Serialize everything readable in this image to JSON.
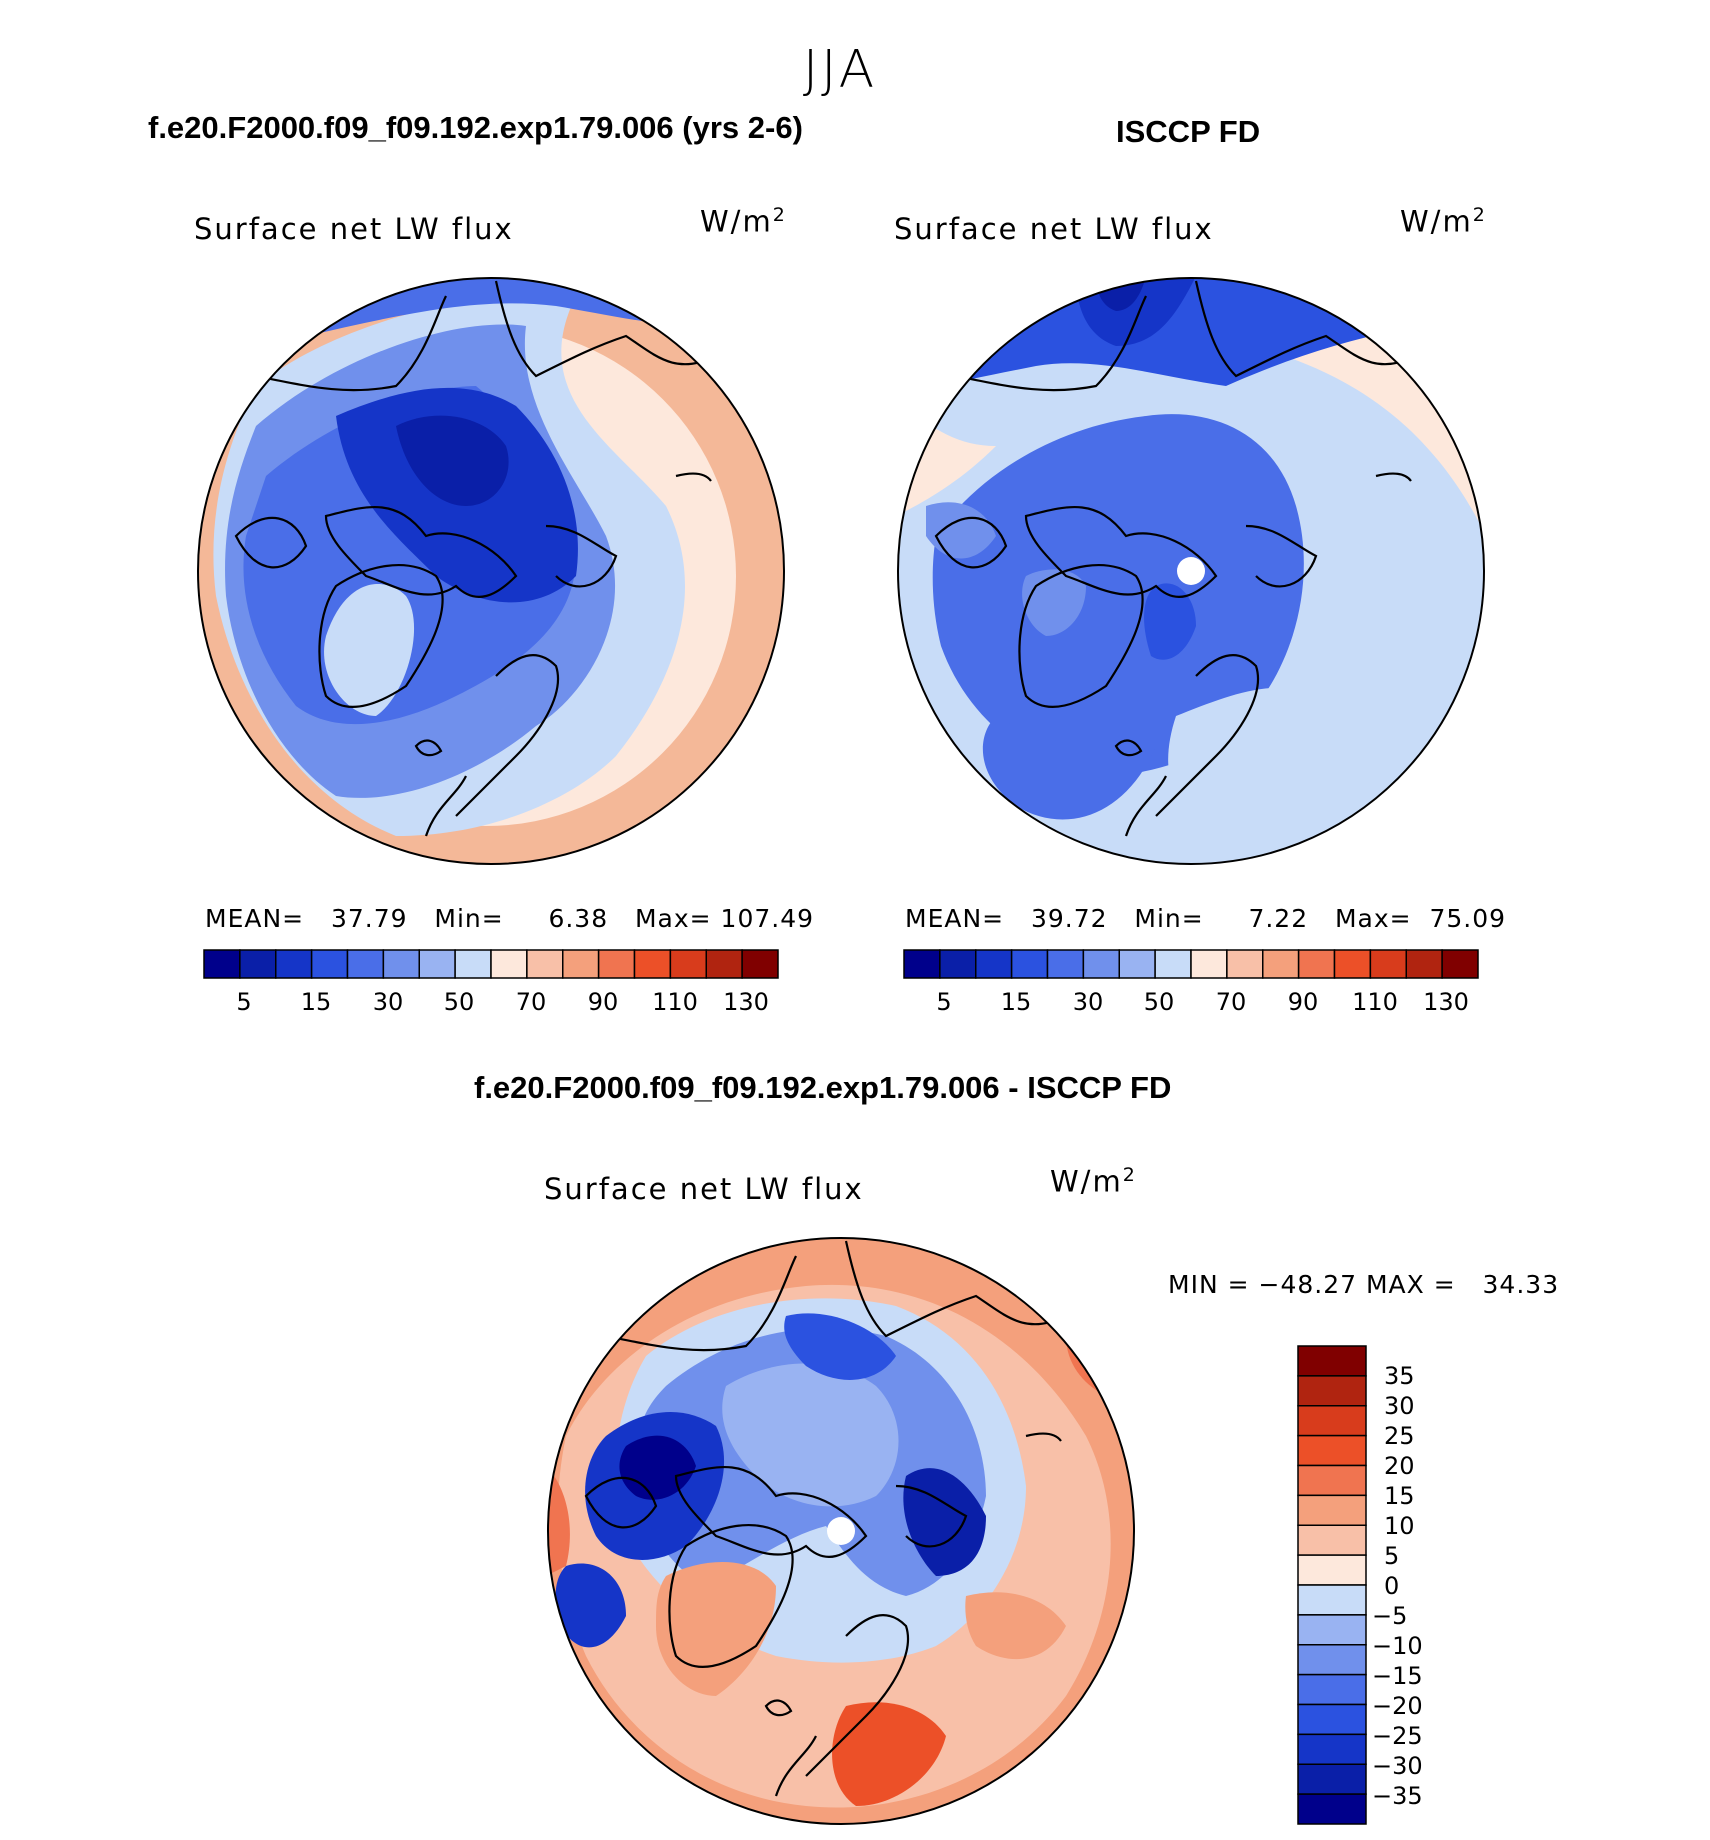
{
  "season": "JJA",
  "left_panel": {
    "case_title": "f.e20.F2000.f09_f09.192.exp1.79.006 (yrs 2-6)",
    "variable": "Surface net LW flux",
    "units": "W/m",
    "units_exp": "2",
    "stats": {
      "mean_label": "MEAN=",
      "mean": "37.79",
      "min_label": "Min=",
      "min": "6.38",
      "max_label": "Max=",
      "max": "107.49"
    }
  },
  "right_panel": {
    "case_title": "ISCCP FD",
    "variable": "Surface net LW flux",
    "units": "W/m",
    "units_exp": "2",
    "stats": {
      "mean_label": "MEAN=",
      "mean": "39.72",
      "min_label": "Min=",
      "min": "7.22",
      "max_label": "Max=",
      "max": "75.09"
    }
  },
  "diff_panel": {
    "case_title": "f.e20.F2000.f09_f09.192.exp1.79.006 - ISCCP FD",
    "variable": "Surface net LW flux",
    "units": "W/m",
    "units_exp": "2",
    "min_label": "MIN =",
    "min": "−48.27",
    "max_label": "MAX =",
    "max": "34.33"
  },
  "abs_colorbar": {
    "colors": [
      "#00008b",
      "#0a1fa8",
      "#1535c8",
      "#2b52e0",
      "#4a6ee8",
      "#7090ec",
      "#99b3f2",
      "#c8dcf8",
      "#fde8dc",
      "#f8c0a8",
      "#f4a07c",
      "#f07450",
      "#ec5028",
      "#d83c1c",
      "#b02410",
      "#800000"
    ],
    "tick_labels": [
      "5",
      "15",
      "30",
      "50",
      "70",
      "90",
      "110",
      "130"
    ]
  },
  "diff_colorbar": {
    "colors": [
      "#00008b",
      "#0a1fa8",
      "#1535c8",
      "#2b52e0",
      "#4a6ee8",
      "#7090ec",
      "#99b3f2",
      "#c8dcf8",
      "#fde8dc",
      "#f8c0a8",
      "#f4a07c",
      "#f07450",
      "#ec5028",
      "#d83c1c",
      "#b02410",
      "#800000"
    ],
    "tick_labels": [
      "35",
      "30",
      "25",
      "20",
      "15",
      "10",
      "5",
      "0",
      "−5",
      "−10",
      "−15",
      "−20",
      "−25",
      "−30",
      "−35"
    ]
  },
  "chart_data": [
    {
      "type": "heatmap",
      "projection": "north-polar-stereographic",
      "title": "Surface net LW flux",
      "case": "f.e20.F2000.f09_f09.192.exp1.79.006 (yrs 2-6)",
      "units": "W/m2",
      "mean": 37.79,
      "min": 6.38,
      "max": 107.49,
      "levels": [
        5,
        10,
        15,
        20,
        30,
        40,
        50,
        60,
        70,
        80,
        90,
        100,
        110,
        120,
        130
      ]
    },
    {
      "type": "heatmap",
      "projection": "north-polar-stereographic",
      "title": "Surface net LW flux",
      "case": "ISCCP FD",
      "units": "W/m2",
      "mean": 39.72,
      "min": 7.22,
      "max": 75.09,
      "levels": [
        5,
        10,
        15,
        20,
        30,
        40,
        50,
        60,
        70,
        80,
        90,
        100,
        110,
        120,
        130
      ]
    },
    {
      "type": "heatmap",
      "projection": "north-polar-stereographic",
      "title": "Surface net LW flux",
      "case": "f.e20.F2000.f09_f09.192.exp1.79.006 - ISCCP FD",
      "units": "W/m2",
      "min": -48.27,
      "max": 34.33,
      "levels": [
        -35,
        -30,
        -25,
        -20,
        -15,
        -10,
        -5,
        0,
        5,
        10,
        15,
        20,
        25,
        30,
        35
      ]
    }
  ]
}
